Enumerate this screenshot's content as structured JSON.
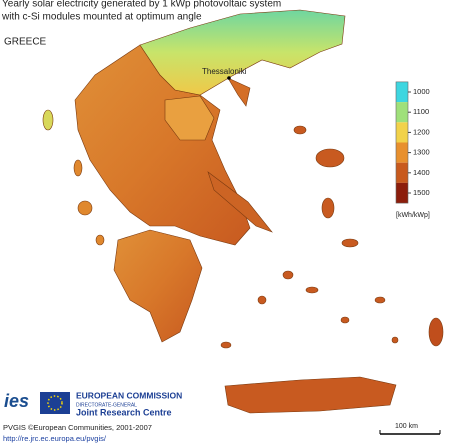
{
  "header": {
    "title_lines": [
      "Yearly solar electricity generated by 1 kWp photovoltaic system",
      "with c-Si modules mounted at optimum angle"
    ],
    "country": "GREECE"
  },
  "map": {
    "cities": [
      {
        "label": "Thessaloniki"
      }
    ]
  },
  "legend": {
    "ticks": [
      1000,
      1100,
      1200,
      1300,
      1400,
      1500
    ],
    "colors": [
      "#3ed6e0",
      "#9fe07a",
      "#f2d24a",
      "#e8902e",
      "#c85a1e",
      "#8c1e0c"
    ],
    "unit": "[kWh/kWp]"
  },
  "scale_bar": {
    "label": "100 km"
  },
  "footer": {
    "logo": "ies",
    "org_lines": [
      "EUROPEAN COMMISSION",
      "DIRECTORATE-GENERAL",
      "Joint Research Centre"
    ],
    "copyright": "PVGIS ©European Communities, 2001-2007",
    "url": "http://re.jrc.ec.europa.eu/pvgis/"
  }
}
